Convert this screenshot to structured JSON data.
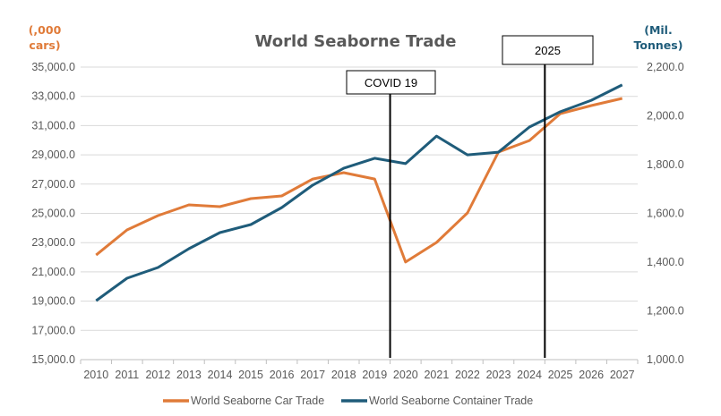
{
  "chart_data": {
    "type": "line",
    "title": "World Seaborne Trade",
    "categories": [
      "2010",
      "2011",
      "2012",
      "2013",
      "2014",
      "2015",
      "2016",
      "2017",
      "2018",
      "2019",
      "2020",
      "2021",
      "2022",
      "2023",
      "2024",
      "2025",
      "2026",
      "2027"
    ],
    "left_axis": {
      "label": "(,000 cars)",
      "range": [
        15000,
        35000
      ],
      "step": 2000,
      "ticks": [
        "15,000.0",
        "17,000.0",
        "19,000.0",
        "21,000.0",
        "23,000.0",
        "25,000.0",
        "27,000.0",
        "29,000.0",
        "31,000.0",
        "33,000.0",
        "35,000.0"
      ],
      "color": "#E07B39"
    },
    "right_axis": {
      "label": "(Mil. Tonnes)",
      "range": [
        1000,
        2200
      ],
      "step": 200,
      "ticks": [
        "1,000.0",
        "1,200.0",
        "1,400.0",
        "1,600.0",
        "1,800.0",
        "2,000.0",
        "2,200.0"
      ],
      "color": "#1F5C7A"
    },
    "series": [
      {
        "name": "World Seaborne Car Trade",
        "axis": "left",
        "color": "#E07B39",
        "values": [
          22150,
          23870,
          24850,
          25580,
          25460,
          26010,
          26190,
          27350,
          27780,
          27350,
          21670,
          23010,
          25030,
          29190,
          29980,
          31820,
          32370,
          32860
        ]
      },
      {
        "name": "World Seaborne Container Trade",
        "axis": "right",
        "color": "#1F5C7A",
        "values": [
          1242,
          1334,
          1378,
          1455,
          1521,
          1554,
          1624,
          1716,
          1785,
          1826,
          1804,
          1917,
          1840,
          1851,
          1954,
          2017,
          2064,
          2127
        ]
      }
    ],
    "annotations": [
      {
        "label": "COVID 19",
        "between": [
          "2019",
          "2020"
        ]
      },
      {
        "label": "2025",
        "between": [
          "2024",
          "2025"
        ]
      }
    ],
    "grid": true,
    "legend": "bottom"
  }
}
